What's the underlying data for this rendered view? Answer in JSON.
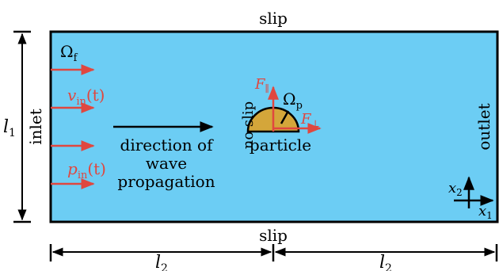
{
  "colors": {
    "fluid": "#6ccdf4",
    "particle": "#d4a63a",
    "arrow": "#e0473f",
    "outline": "#000000"
  },
  "labels": {
    "top_boundary": "slip",
    "bottom_boundary": "slip",
    "left_boundary": "inlet",
    "right_boundary": "outlet",
    "particle_wall": "no slip",
    "fluid_domain": "Ω",
    "fluid_domain_sub": "f",
    "particle_domain": "Ω",
    "particle_domain_sub": "p",
    "particle_name": "particle",
    "velocity_symbol": "v",
    "velocity_sub": "in",
    "velocity_arg": "(t)",
    "pressure_symbol": "p",
    "pressure_sub": "in",
    "pressure_arg": "(t)",
    "force_parallel": "F",
    "force_parallel_sub": "∥",
    "force_perp": "F",
    "force_perp_sub": "⊥",
    "wave_line1": "direction of",
    "wave_line2": "wave",
    "wave_line3": "propagation",
    "height_symbol": "l",
    "height_sub": "1",
    "length_left_symbol": "l",
    "length_left_sub": "2",
    "length_right_symbol": "l",
    "length_right_sub": "2",
    "axis_x2": "x",
    "axis_x2_sub": "2",
    "axis_x1": "x",
    "axis_x1_sub": "1"
  }
}
